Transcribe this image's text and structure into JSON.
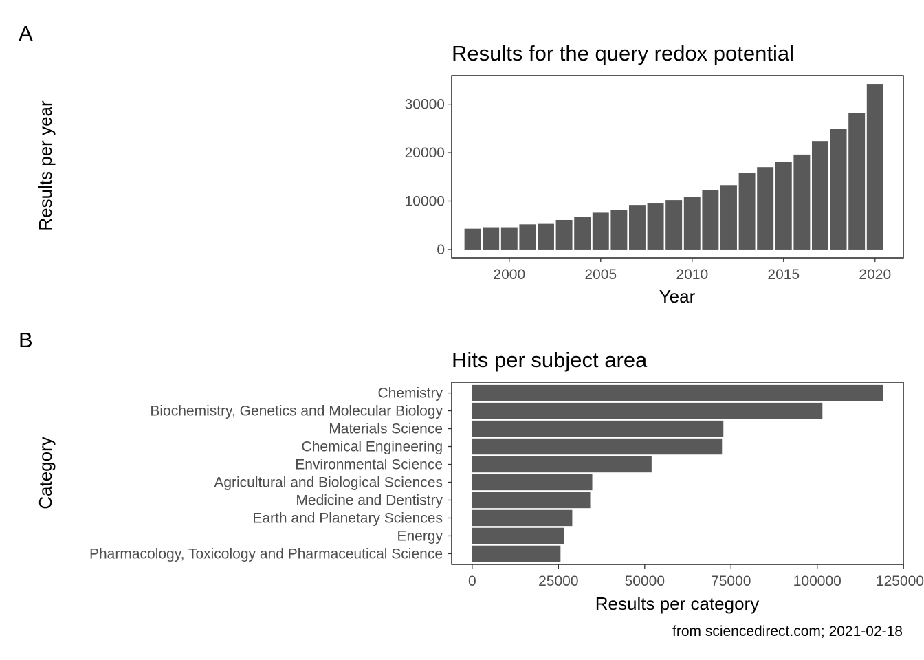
{
  "panel_tags": [
    "A",
    "B"
  ],
  "caption": "from sciencedirect.com; 2021-02-18",
  "bar_color": "#595959",
  "chart_data": [
    {
      "type": "bar",
      "title": "Results for the query redox potential",
      "xlabel": "Year",
      "ylabel": "Results per year",
      "x": [
        1998,
        1999,
        2000,
        2001,
        2002,
        2003,
        2004,
        2005,
        2006,
        2007,
        2008,
        2009,
        2010,
        2011,
        2012,
        2013,
        2014,
        2015,
        2016,
        2017,
        2018,
        2019,
        2020
      ],
      "values": [
        4300,
        4600,
        4600,
        5200,
        5300,
        6100,
        6800,
        7600,
        8200,
        9200,
        9500,
        10200,
        10800,
        12200,
        13300,
        15800,
        17000,
        18100,
        19600,
        22400,
        24900,
        28200,
        34200
      ],
      "xlim": [
        1996.85,
        2021.55
      ],
      "ylim": [
        -1710,
        35910
      ],
      "xticks": [
        2000,
        2005,
        2010,
        2015,
        2020
      ],
      "yticks": [
        0,
        10000,
        20000,
        30000
      ],
      "grid": false,
      "legend": "none"
    },
    {
      "type": "bar",
      "orientation": "horizontal",
      "title": "Hits per subject area",
      "xlabel": "Results per category",
      "ylabel": "Category",
      "categories": [
        "Chemistry",
        "Biochemistry, Genetics and Molecular Biology",
        "Materials Science",
        "Chemical Engineering",
        "Environmental Science",
        "Agricultural and Biological Sciences",
        "Medicine and Dentistry",
        "Earth and Planetary Sciences",
        "Energy",
        "Pharmacology, Toxicology and Pharmaceutical Science"
      ],
      "values": [
        119000,
        101500,
        72800,
        72400,
        52000,
        34800,
        34200,
        29000,
        26600,
        25600
      ],
      "xlim": [
        -5950,
        124950
      ],
      "xticks": [
        0,
        25000,
        50000,
        75000,
        100000,
        125000
      ],
      "grid": false,
      "legend": "none"
    }
  ]
}
